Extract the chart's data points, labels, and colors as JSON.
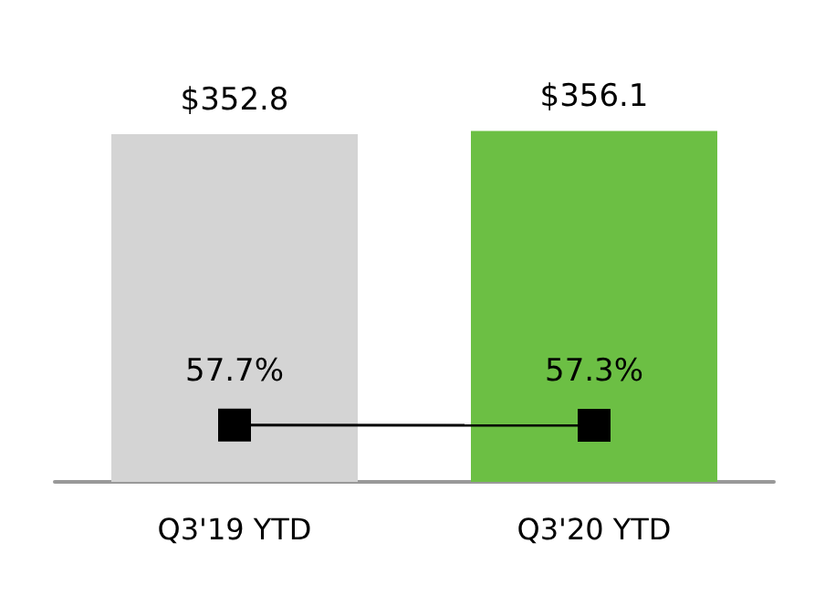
{
  "chart_data": {
    "type": "bar",
    "categories": [
      "Q3'19 YTD",
      "Q3'20 YTD"
    ],
    "series": [
      {
        "colors": [
          "#d4d4d4",
          "#6cbf44"
        ],
        "values": [
          352.8,
          356.1
        ],
        "value_labels": [
          "$352.8",
          "$356.1"
        ]
      },
      {
        "type": "line",
        "color": "#000000",
        "values": [
          57.7,
          57.3
        ],
        "value_labels": [
          "57.7%",
          "57.3%"
        ],
        "marker": "square",
        "line_style": "solid"
      }
    ],
    "tick_labels": "x",
    "grid": false
  }
}
